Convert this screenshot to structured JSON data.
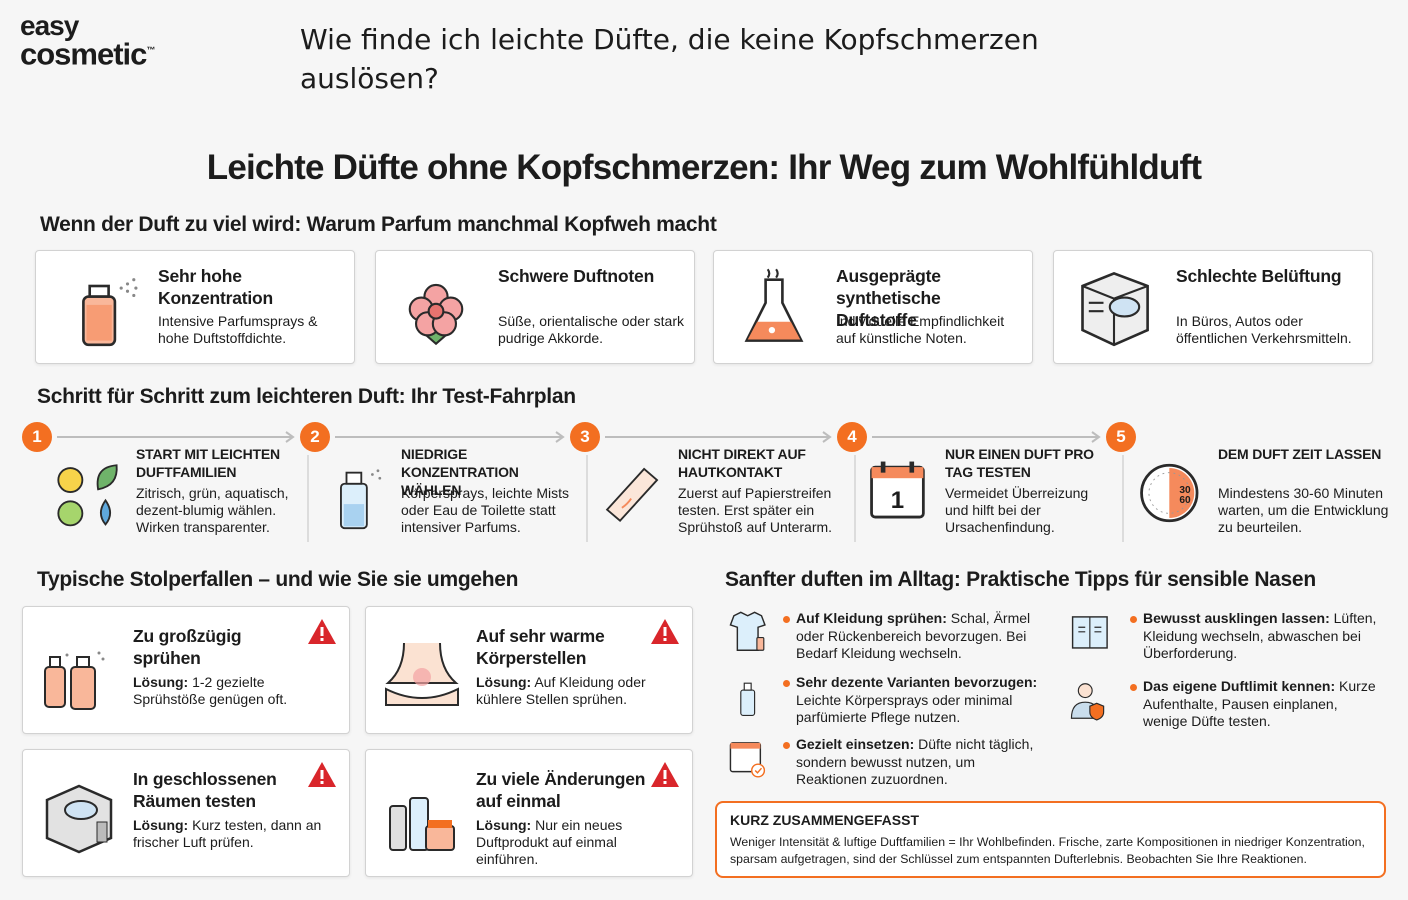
{
  "logo": {
    "line1": "easy",
    "line2": "cosmetic",
    "mark": "™"
  },
  "question": "Wie finde ich leichte Düfte, die keine Kopfschmerzen auslösen?",
  "title": "Leichte Düfte ohne Kopfschmerzen: Ihr Weg zum Wohlfühlduft",
  "causes": {
    "heading": "Wenn der Duft zu viel wird: Warum Parfum manchmal Kopfweh macht",
    "cards": [
      {
        "title": "Sehr hohe Konzentration",
        "text": "Intensive Parfumsprays & hohe Duftstoffdichte."
      },
      {
        "title": "Schwere Duftnoten",
        "text": "Süße, orientalische oder stark pudrige Akkorde."
      },
      {
        "title": "Ausgeprägte synthetische Duftstoffe",
        "text": "Individuelle Empfindlichkeit auf künstliche Noten."
      },
      {
        "title": "Schlechte Belüftung",
        "text": "In Büros, Autos oder öffentlichen Verkehrsmitteln."
      }
    ]
  },
  "steps": {
    "heading": "Schritt für Schritt zum leichteren Duft: Ihr Test-Fahrplan",
    "items": [
      {
        "number": "1",
        "title": "START MIT LEICHTEN DUFTFAMILIEN",
        "text": "Zitrisch, grün, aquatisch, dezent-blumig wählen. Wirken transparenter."
      },
      {
        "number": "2",
        "title": "NIEDRIGE KONZENTRATION WÄHLEN",
        "text": "Körpersprays, leichte Mists oder Eau de Toilette statt intensiver Parfums."
      },
      {
        "number": "3",
        "title": "NICHT DIREKT AUF HAUTKONTAKT",
        "text": "Zuerst auf Papierstreifen testen. Erst später ein Sprühstoß auf Unterarm."
      },
      {
        "number": "4",
        "title": "NUR EINEN DUFT PRO TAG TESTEN",
        "text": "Vermeidet Überreizung und hilft bei der Ursachenfindung.",
        "icon_text": "1"
      },
      {
        "number": "5",
        "title": "DEM DUFT ZEIT LASSEN",
        "text": "Mindestens 30-60 Minuten warten, um die Entwicklung zu beurteilen.",
        "icon_text": [
          "30",
          "60"
        ]
      }
    ]
  },
  "pitfalls": {
    "heading": "Typische Stolperfallen – und wie Sie sie umgehen",
    "items": [
      {
        "title": "Zu großzügig sprühen",
        "label": "Lösung:",
        "text": "1-2 gezielte Sprühstöße genügen oft."
      },
      {
        "title": "Auf sehr warme Körperstellen",
        "label": "Lösung:",
        "text": "Auf Kleidung oder kühlere Stellen sprühen."
      },
      {
        "title": "In geschlossenen Räumen testen",
        "label": "Lösung:",
        "text": "Kurz testen, dann an frischer Luft prüfen."
      },
      {
        "title": "Zu viele Änderungen auf einmal",
        "label": "Lösung:",
        "text": "Nur ein neues Duftprodukt auf einmal einführen."
      }
    ]
  },
  "tips": {
    "heading": "Sanfter duften im Alltag: Praktische Tipps für sensible Nasen",
    "items": [
      {
        "label": "Auf Kleidung sprühen:",
        "text": "Schal, Ärmel oder Rückenbereich bevorzugen. Bei Bedarf Kleidung wechseln."
      },
      {
        "label": "Sehr dezente Varianten bevorzugen:",
        "text": "Leichte Körpersprays oder minimal parfümierte Pflege nutzen."
      },
      {
        "label": "Gezielt einsetzen:",
        "text": "Düfte nicht täglich, sondern bewusst nutzen, um Reaktionen zuzuordnen."
      },
      {
        "label": "Bewusst ausklingen lassen:",
        "text": "Lüften, Kleidung wechseln, abwaschen bei Überforderung."
      },
      {
        "label": "Das eigene Duftlimit kennen:",
        "text": "Kurze Aufenthalte, Pausen einplanen, wenige Düfte testen."
      }
    ]
  },
  "summary": {
    "title": "KURZ ZUSAMMENGEFASST",
    "text": "Weniger Intensität & luftige Duftfamilien = Ihr Wohlbefinden. Frische, zarte Kompositionen in niedriger Konzentration, sparsam aufgetragen, sind der Schlüssel zum entspannten Dufterlebnis. Beobachten Sie Ihre Reaktionen."
  }
}
